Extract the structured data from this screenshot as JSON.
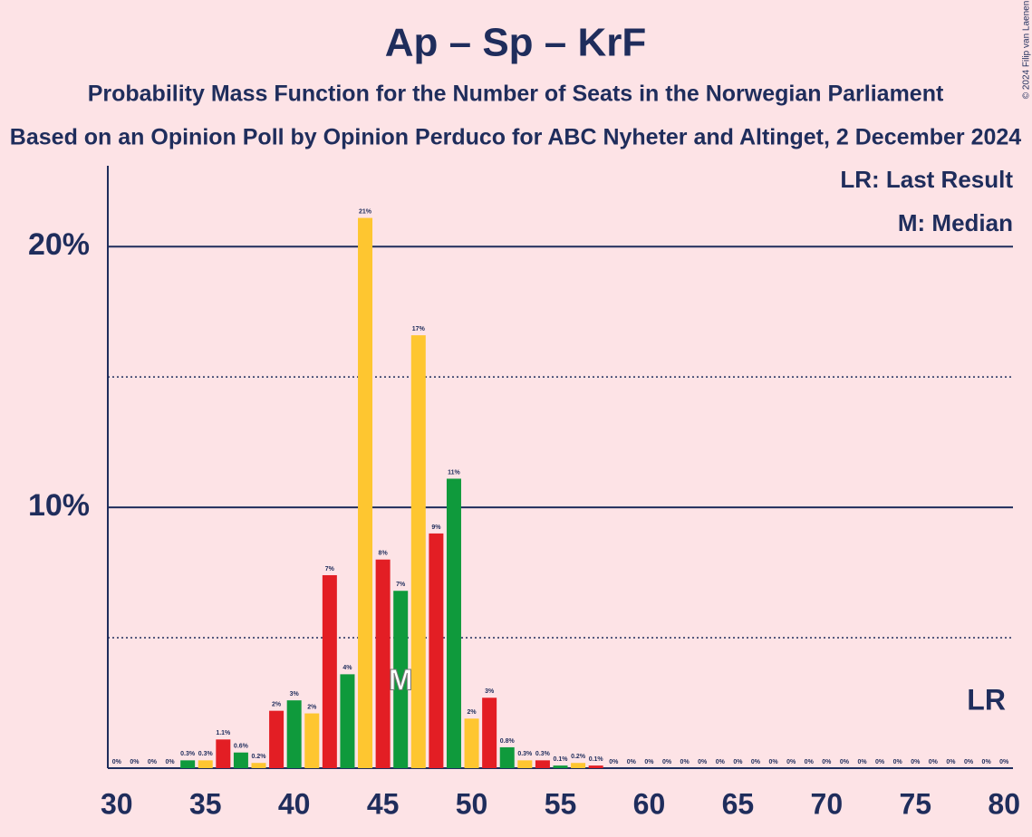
{
  "chart_data": {
    "type": "bar",
    "title": "Ap – Sp – KrF",
    "subtitle": "Probability Mass Function for the Number of Seats in the Norwegian Parliament",
    "subtitle2": "Based on an Opinion Poll by Opinion Perduco for ABC Nyheter and Altinget, 2 December 2024",
    "copyright": "© 2024 Filip van Laenen",
    "legend_last_result": "LR: Last Result",
    "legend_median": "M: Median",
    "x": [
      30,
      31,
      32,
      33,
      34,
      35,
      36,
      37,
      38,
      39,
      40,
      41,
      42,
      43,
      44,
      45,
      46,
      47,
      48,
      49,
      50,
      51,
      52,
      53,
      54,
      55,
      56,
      57,
      58,
      59,
      60,
      61,
      62,
      63,
      64,
      65,
      66,
      67,
      68,
      69,
      70,
      71,
      72,
      73,
      74,
      75,
      76,
      77,
      78,
      79,
      80
    ],
    "values": [
      0,
      0,
      0,
      0,
      0.3,
      0.3,
      1.1,
      0.6,
      0.2,
      2.2,
      2.6,
      2.1,
      7.4,
      3.6,
      21.1,
      8,
      6.8,
      16.6,
      9,
      11.1,
      1.9,
      2.7,
      0.8,
      0.3,
      0.3,
      0.1,
      0.2,
      0.1,
      0,
      0,
      0,
      0,
      0,
      0,
      0,
      0,
      0,
      0,
      0,
      0,
      0,
      0,
      0,
      0,
      0,
      0,
      0,
      0,
      0,
      0,
      0
    ],
    "value_labels": [
      "0%",
      "0%",
      "0%",
      "0%",
      "0.3%",
      "0.3%",
      "1.1%",
      "0.6%",
      "0.2%",
      "2%",
      "3%",
      "2%",
      "7%",
      "4%",
      "21%",
      "8%",
      "7%",
      "17%",
      "9%",
      "11%",
      "2%",
      "3%",
      "0.8%",
      "0.3%",
      "0.3%",
      "0.1%",
      "0.2%",
      "0.1%",
      "0%",
      "0%",
      "0%",
      "0%",
      "0%",
      "0%",
      "0%",
      "0%",
      "0%",
      "0%",
      "0%",
      "0%",
      "0%",
      "0%",
      "0%",
      "0%",
      "0%",
      "0%",
      "0%",
      "0%",
      "0%",
      "0%",
      "0%"
    ],
    "colors": [
      "#e31e24",
      "#0f9a3c",
      "#fec630",
      "#e31e24",
      "#0f9a3c",
      "#fec630",
      "#e31e24",
      "#0f9a3c",
      "#fec630",
      "#e31e24",
      "#0f9a3c",
      "#fec630",
      "#e31e24",
      "#0f9a3c",
      "#fec630",
      "#e31e24",
      "#0f9a3c",
      "#fec630",
      "#e31e24",
      "#0f9a3c",
      "#fec630",
      "#e31e24",
      "#0f9a3c",
      "#fec630",
      "#e31e24",
      "#0f9a3c",
      "#fec630",
      "#e31e24",
      "#0f9a3c",
      "#fec630",
      "#e31e24",
      "#0f9a3c",
      "#fec630",
      "#e31e24",
      "#0f9a3c",
      "#fec630",
      "#e31e24",
      "#0f9a3c",
      "#fec630",
      "#e31e24",
      "#0f9a3c",
      "#fec630",
      "#e31e24",
      "#0f9a3c",
      "#fec630",
      "#e31e24",
      "#0f9a3c",
      "#fec630",
      "#e31e24",
      "#0f9a3c",
      "#fec630"
    ],
    "xlim": [
      29.5,
      80.5
    ],
    "xticks": [
      30,
      35,
      40,
      45,
      50,
      55,
      60,
      65,
      70,
      75,
      80
    ],
    "ylim": [
      0,
      23.1
    ],
    "yticks": [
      {
        "value": 10,
        "label": "10%"
      },
      {
        "value": 20,
        "label": "20%"
      }
    ],
    "yticks_minor": [
      5,
      15
    ],
    "grid": true,
    "median": 46,
    "median_label": "M",
    "last_result": 79,
    "last_result_label": "LR"
  }
}
